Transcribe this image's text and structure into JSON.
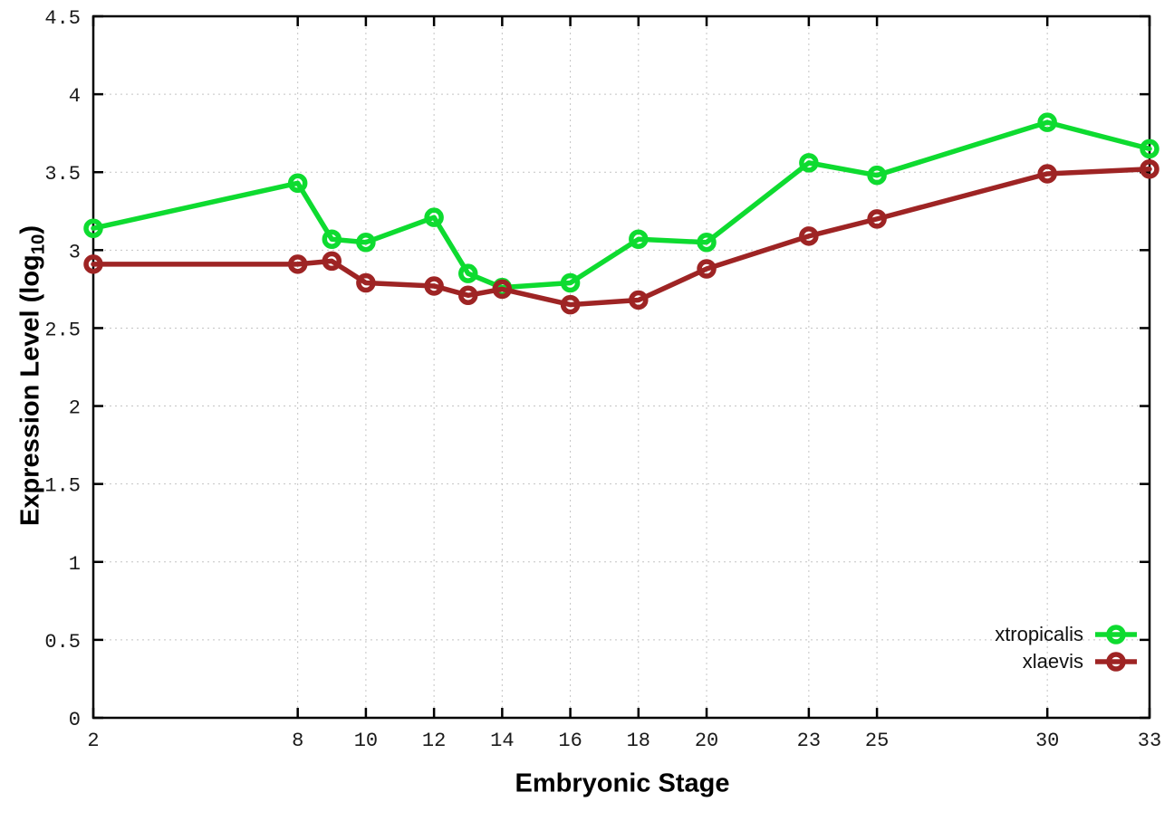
{
  "chart_data": {
    "type": "line",
    "title": "",
    "xlabel": "Embryonic Stage",
    "ylabel_prefix": "Expression Level (log",
    "ylabel_sub": "10",
    "ylabel_suffix": ")",
    "x": [
      2,
      8,
      9,
      10,
      12,
      13,
      14,
      16,
      18,
      20,
      23,
      25,
      30,
      33
    ],
    "series": [
      {
        "name": "xtropicalis",
        "color": "#0edb30",
        "values": [
          3.14,
          3.43,
          3.07,
          3.05,
          3.21,
          2.85,
          2.76,
          2.79,
          3.07,
          3.05,
          3.56,
          3.48,
          3.82,
          3.65
        ]
      },
      {
        "name": "xlaevis",
        "color": "#9e2424",
        "values": [
          2.91,
          2.91,
          2.93,
          2.79,
          2.77,
          2.71,
          2.75,
          2.65,
          2.68,
          2.88,
          3.09,
          3.2,
          3.49,
          3.52
        ]
      }
    ],
    "xlim": [
      2,
      33
    ],
    "ylim": [
      0,
      4.5
    ],
    "x_ticks": [
      2,
      8,
      10,
      12,
      14,
      16,
      18,
      20,
      23,
      25,
      30,
      33
    ],
    "x_tick_labels": [
      "2",
      "8",
      "10",
      "12",
      "14",
      "16",
      "18",
      "20",
      "23",
      "25",
      "30",
      "33"
    ],
    "y_ticks": [
      0,
      0.5,
      1,
      1.5,
      2,
      2.5,
      3,
      3.5,
      4,
      4.5
    ],
    "y_tick_labels": [
      "0",
      "0.5",
      "1",
      "1.5",
      "2",
      "2.5",
      "3",
      "3.5",
      "4",
      "4.5"
    ],
    "grid": true,
    "legend_position": "bottom-right",
    "marker": "open-circle",
    "colors": {
      "axis": "#000000",
      "grid": "#c4c4c4",
      "tick_text": "#1a1a1a"
    }
  }
}
